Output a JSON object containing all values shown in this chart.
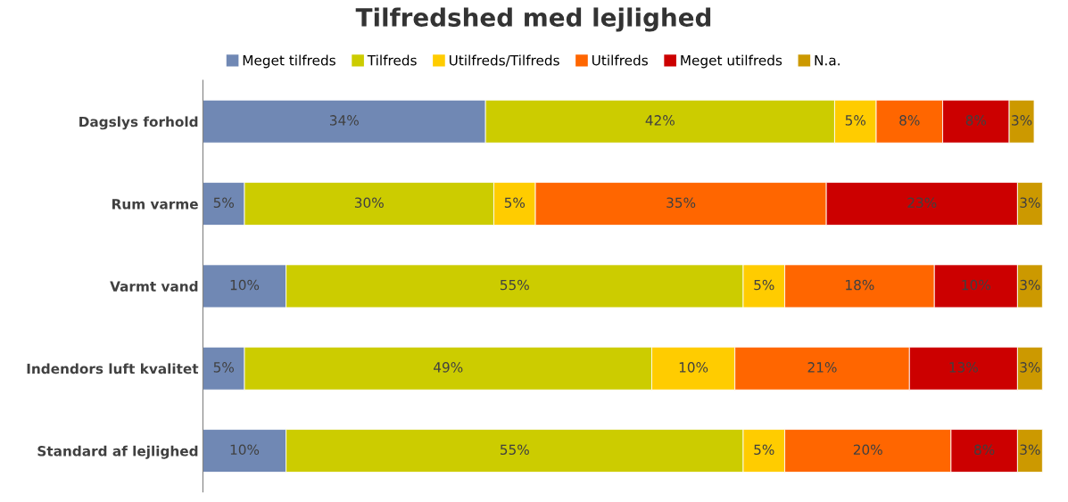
{
  "chart_data": {
    "type": "bar",
    "orientation": "horizontal",
    "stacked": true,
    "title": "Tilfredshed med lejlighed",
    "categories": [
      "Dagslys forhold",
      "Rum varme",
      "Varmt vand",
      "Indendors luft kvalitet",
      "Standard af lejlighed"
    ],
    "series": [
      {
        "name": "Meget tilfreds",
        "color": "#7088b4",
        "values": [
          34,
          5,
          10,
          5,
          10
        ],
        "value_labels": [
          "34%",
          "5%",
          "10%",
          "5%",
          "10%"
        ]
      },
      {
        "name": "Tilfreds",
        "color": "#cccc00",
        "values": [
          42,
          30,
          55,
          49,
          55
        ],
        "value_labels": [
          "42%",
          "30%",
          "55%",
          "49%",
          "55%"
        ]
      },
      {
        "name": "Utilfreds/Tilfreds",
        "color": "#ffcc00",
        "values": [
          5,
          5,
          5,
          10,
          5
        ],
        "value_labels": [
          "5%",
          "5%",
          "5%",
          "10%",
          "5%"
        ]
      },
      {
        "name": "Utilfreds",
        "color": "#ff6600",
        "values": [
          8,
          35,
          18,
          21,
          20
        ],
        "value_labels": [
          "8%",
          "35%",
          "18%",
          "21%",
          "20%"
        ]
      },
      {
        "name": "Meget utilfreds",
        "color": "#cc0000",
        "values": [
          8,
          23,
          10,
          13,
          8
        ],
        "value_labels": [
          "8%",
          "23%",
          "10%",
          "13%",
          "8%"
        ]
      },
      {
        "name": "N.a.",
        "color": "#cc9900",
        "values": [
          3,
          3,
          3,
          3,
          3
        ],
        "value_labels": [
          "3%",
          "3%",
          "3%",
          "3%",
          "3%"
        ]
      }
    ],
    "legend": "top",
    "grid": false,
    "tick_labels": "y"
  }
}
